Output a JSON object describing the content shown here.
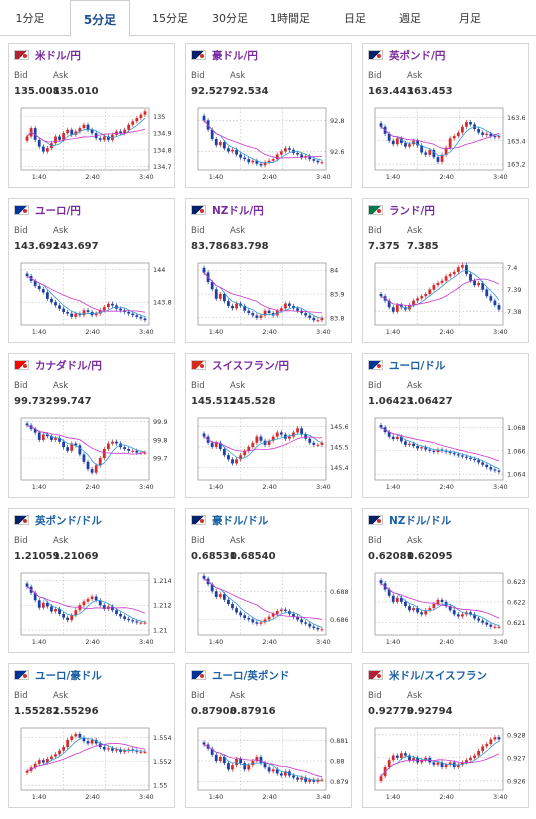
{
  "tabs": [
    {
      "label": "1分足",
      "active": false
    },
    {
      "label": "5分足",
      "active": true
    },
    {
      "label": "15分足",
      "active": false
    },
    {
      "label": "30分足",
      "active": false
    },
    {
      "label": "1時間足",
      "active": false
    },
    {
      "label": "日足",
      "active": false
    },
    {
      "label": "週足",
      "active": false
    },
    {
      "label": "月足",
      "active": false
    }
  ],
  "colors": {
    "up": "#d52b2b",
    "down": "#1c3fa8",
    "ma_short": "#2f9ad6",
    "ma_long": "#cc33cc",
    "grid": "#bbbbbb",
    "accent": "#1d4e8f"
  },
  "bid_label": "Bid",
  "ask_label": "Ask",
  "x_ticks": [
    "1:40",
    "2:40",
    "3:40"
  ],
  "pairs": [
    {
      "name": "米ドル/円",
      "flag": "us-jp-flag-icon",
      "bid": "135.008",
      "ask": "135.010",
      "title_color": "purple",
      "chart_data": {
        "type": "candlestick",
        "y_ticks": [
          "135",
          "134.9",
          "134.8",
          "134.7"
        ],
        "ylim": [
          134.68,
          135.05
        ],
        "close": [
          134.88,
          134.93,
          134.86,
          134.82,
          134.79,
          134.81,
          134.84,
          134.88,
          134.86,
          134.9,
          134.92,
          134.89,
          134.91,
          134.93,
          134.95,
          134.92,
          134.9,
          134.87,
          134.86,
          134.88,
          134.86,
          134.89,
          134.91,
          134.9,
          134.92,
          134.95,
          134.97,
          134.99,
          135.01,
          135.03
        ]
      }
    },
    {
      "name": "豪ドル/円",
      "flag": "au-jp-flag-icon",
      "bid": "92.527",
      "ask": "92.534",
      "title_color": "purple",
      "chart_data": {
        "type": "candlestick",
        "y_ticks": [
          "92.8",
          "92.6"
        ],
        "ylim": [
          92.48,
          92.88
        ],
        "close": [
          92.8,
          92.74,
          92.68,
          92.64,
          92.66,
          92.62,
          92.6,
          92.61,
          92.58,
          92.56,
          92.55,
          92.53,
          92.54,
          92.52,
          92.51,
          92.53,
          92.54,
          92.55,
          92.58,
          92.6,
          92.62,
          92.61,
          92.59,
          92.58,
          92.56,
          92.57,
          92.55,
          92.54,
          92.53,
          92.53
        ]
      }
    },
    {
      "name": "英ポンド/円",
      "flag": "gb-jp-flag-icon",
      "bid": "163.443",
      "ask": "163.453",
      "title_color": "purple",
      "chart_data": {
        "type": "candlestick",
        "y_ticks": [
          "163.6",
          "163.4",
          "163.2"
        ],
        "ylim": [
          163.15,
          163.68
        ],
        "close": [
          163.52,
          163.46,
          163.4,
          163.37,
          163.42,
          163.38,
          163.35,
          163.37,
          163.4,
          163.36,
          163.3,
          163.28,
          163.32,
          163.26,
          163.22,
          163.28,
          163.34,
          163.42,
          163.44,
          163.47,
          163.52,
          163.56,
          163.54,
          163.5,
          163.47,
          163.45,
          163.46,
          163.44,
          163.43,
          163.44
        ]
      }
    },
    {
      "name": "ユーロ/円",
      "flag": "eu-jp-flag-icon",
      "bid": "143.692",
      "ask": "143.697",
      "title_color": "purple",
      "chart_data": {
        "type": "candlestick",
        "y_ticks": [
          "144",
          "143.8"
        ],
        "ylim": [
          143.66,
          144.04
        ],
        "close": [
          143.96,
          143.93,
          143.9,
          143.88,
          143.86,
          143.82,
          143.8,
          143.78,
          143.76,
          143.74,
          143.73,
          143.71,
          143.73,
          143.72,
          143.75,
          143.74,
          143.72,
          143.73,
          143.75,
          143.77,
          143.79,
          143.78,
          143.76,
          143.75,
          143.74,
          143.73,
          143.72,
          143.71,
          143.7,
          143.69
        ]
      }
    },
    {
      "name": "NZドル/円",
      "flag": "nz-jp-flag-icon",
      "bid": "83.786",
      "ask": "83.798",
      "title_color": "purple",
      "chart_data": {
        "type": "candlestick",
        "y_ticks": [
          "84",
          "83.9",
          "83.8"
        ],
        "ylim": [
          83.77,
          84.03
        ],
        "close": [
          83.99,
          83.95,
          83.92,
          83.88,
          83.9,
          83.87,
          83.85,
          83.84,
          83.86,
          83.85,
          83.83,
          83.82,
          83.81,
          83.8,
          83.81,
          83.83,
          83.82,
          83.81,
          83.83,
          83.84,
          83.86,
          83.85,
          83.84,
          83.83,
          83.82,
          83.81,
          83.8,
          83.79,
          83.79,
          83.8
        ]
      }
    },
    {
      "name": "ランド/円",
      "flag": "za-jp-flag-icon",
      "bid": "7.375",
      "ask": "7.385",
      "title_color": "purple",
      "chart_data": {
        "type": "candlestick",
        "y_ticks": [
          "7.4",
          "7.39",
          "7.38"
        ],
        "ylim": [
          7.374,
          7.402
        ],
        "close": [
          7.387,
          7.385,
          7.382,
          7.38,
          7.383,
          7.382,
          7.381,
          7.383,
          7.385,
          7.386,
          7.387,
          7.388,
          7.39,
          7.392,
          7.393,
          7.394,
          7.396,
          7.397,
          7.398,
          7.4,
          7.401,
          7.397,
          7.394,
          7.392,
          7.393,
          7.39,
          7.387,
          7.385,
          7.383,
          7.381
        ]
      }
    },
    {
      "name": "カナダドル/円",
      "flag": "ca-jp-flag-icon",
      "bid": "99.732",
      "ask": "99.747",
      "title_color": "purple",
      "chart_data": {
        "type": "candlestick",
        "y_ticks": [
          "99.9",
          "99.8",
          "99.7"
        ],
        "ylim": [
          99.58,
          99.92
        ],
        "close": [
          99.88,
          99.86,
          99.84,
          99.8,
          99.83,
          99.82,
          99.8,
          99.81,
          99.79,
          99.76,
          99.74,
          99.78,
          99.77,
          99.72,
          99.68,
          99.64,
          99.62,
          99.66,
          99.7,
          99.75,
          99.78,
          99.79,
          99.78,
          99.76,
          99.75,
          99.74,
          99.74,
          99.73,
          99.73,
          99.73
        ]
      }
    },
    {
      "name": "スイスフラン/円",
      "flag": "ch-jp-flag-icon",
      "bid": "145.512",
      "ask": "145.528",
      "title_color": "purple",
      "chart_data": {
        "type": "candlestick",
        "y_ticks": [
          "145.6",
          "145.5",
          "145.4"
        ],
        "ylim": [
          145.34,
          145.64
        ],
        "close": [
          145.55,
          145.52,
          145.5,
          145.52,
          145.49,
          145.46,
          145.44,
          145.42,
          145.44,
          145.46,
          145.48,
          145.5,
          145.52,
          145.55,
          145.53,
          145.51,
          145.53,
          145.55,
          145.57,
          145.56,
          145.54,
          145.55,
          145.57,
          145.59,
          145.56,
          145.54,
          145.52,
          145.51,
          145.51,
          145.52
        ]
      }
    },
    {
      "name": "ユーロ/ドル",
      "flag": "eu-us-flag-icon",
      "bid": "1.06423",
      "ask": "1.06427",
      "title_color": "blue",
      "chart_data": {
        "type": "candlestick",
        "y_ticks": [
          "1.068",
          "1.066",
          "1.064"
        ],
        "ylim": [
          1.0635,
          1.0688
        ],
        "close": [
          1.068,
          1.0676,
          1.0672,
          1.067,
          1.0672,
          1.0668,
          1.0665,
          1.0666,
          1.0664,
          1.0662,
          1.0663,
          1.0661,
          1.066,
          1.0659,
          1.0661,
          1.066,
          1.0659,
          1.0658,
          1.0657,
          1.0656,
          1.0655,
          1.0654,
          1.0653,
          1.0652,
          1.065,
          1.0648,
          1.0646,
          1.0644,
          1.0643,
          1.0642
        ]
      }
    },
    {
      "name": "英ポンド/ドル",
      "flag": "gb-us-flag-icon",
      "bid": "1.21059",
      "ask": "1.21069",
      "title_color": "blue",
      "chart_data": {
        "type": "candlestick",
        "y_ticks": [
          "1.214",
          "1.212",
          "1.21"
        ],
        "ylim": [
          1.2096,
          1.2146
        ],
        "close": [
          1.2135,
          1.213,
          1.2124,
          1.2118,
          1.2122,
          1.2119,
          1.2115,
          1.2117,
          1.2113,
          1.211,
          1.2108,
          1.2112,
          1.2116,
          1.212,
          1.2123,
          1.2125,
          1.2127,
          1.2124,
          1.212,
          1.2117,
          1.2119,
          1.2116,
          1.2113,
          1.2111,
          1.2109,
          1.2108,
          1.2107,
          1.2106,
          1.2106,
          1.2106
        ]
      }
    },
    {
      "name": "豪ドル/ドル",
      "flag": "au-us-flag-icon",
      "bid": "0.68531",
      "ask": "0.68540",
      "title_color": "blue",
      "chart_data": {
        "type": "candlestick",
        "y_ticks": [
          "0.688",
          "0.686"
        ],
        "ylim": [
          0.6849,
          0.6893
        ],
        "close": [
          0.6889,
          0.6885,
          0.688,
          0.6876,
          0.6878,
          0.6874,
          0.6871,
          0.6868,
          0.6865,
          0.6863,
          0.6861,
          0.686,
          0.6858,
          0.6857,
          0.6858,
          0.686,
          0.6862,
          0.6864,
          0.6866,
          0.6867,
          0.6866,
          0.6864,
          0.6862,
          0.686,
          0.6858,
          0.6857,
          0.6855,
          0.6854,
          0.6853,
          0.6853
        ]
      }
    },
    {
      "name": "NZドル/ドル",
      "flag": "nz-us-flag-icon",
      "bid": "0.62081",
      "ask": "0.62095",
      "title_color": "blue",
      "chart_data": {
        "type": "candlestick",
        "y_ticks": [
          "0.623",
          "0.622",
          "0.621"
        ],
        "ylim": [
          0.6204,
          0.6234
        ],
        "close": [
          0.6229,
          0.6226,
          0.6223,
          0.622,
          0.6222,
          0.622,
          0.6218,
          0.6216,
          0.6217,
          0.6215,
          0.6214,
          0.6216,
          0.6217,
          0.6219,
          0.6221,
          0.622,
          0.6218,
          0.6216,
          0.6214,
          0.6213,
          0.6214,
          0.6215,
          0.6214,
          0.6212,
          0.6211,
          0.621,
          0.6209,
          0.6208,
          0.6208,
          0.6208
        ]
      }
    },
    {
      "name": "ユーロ/豪ドル",
      "flag": "eu-au-flag-icon",
      "bid": "1.55282",
      "ask": "1.55296",
      "title_color": "blue",
      "chart_data": {
        "type": "candlestick",
        "y_ticks": [
          "1.554",
          "1.552",
          "1.55"
        ],
        "ylim": [
          1.5496,
          1.5548
        ],
        "close": [
          1.5512,
          1.5515,
          1.5518,
          1.5521,
          1.5519,
          1.5522,
          1.5524,
          1.5526,
          1.5529,
          1.5532,
          1.5538,
          1.5541,
          1.5543,
          1.554,
          1.5537,
          1.5535,
          1.5538,
          1.5535,
          1.5532,
          1.553,
          1.5531,
          1.5529,
          1.553,
          1.5528,
          1.5529,
          1.553,
          1.5529,
          1.5528,
          1.5528,
          1.5528
        ]
      }
    },
    {
      "name": "ユーロ/英ポンド",
      "flag": "eu-gb-flag-icon",
      "bid": "0.87908",
      "ask": "0.87916",
      "title_color": "blue",
      "chart_data": {
        "type": "candlestick",
        "y_ticks": [
          "0.881",
          "0.88",
          "0.879"
        ],
        "ylim": [
          0.8786,
          0.8816
        ],
        "close": [
          0.8808,
          0.8806,
          0.8803,
          0.88,
          0.8802,
          0.8799,
          0.8796,
          0.8798,
          0.8801,
          0.8799,
          0.8796,
          0.8798,
          0.88,
          0.8802,
          0.8799,
          0.8797,
          0.8795,
          0.8796,
          0.8794,
          0.8793,
          0.8795,
          0.8793,
          0.8792,
          0.8791,
          0.8792,
          0.879,
          0.8791,
          0.879,
          0.8791,
          0.8791
        ]
      }
    },
    {
      "name": "米ドル/スイスフラン",
      "flag": "us-ch-flag-icon",
      "bid": "0.92779",
      "ask": "0.92794",
      "title_color": "blue",
      "chart_data": {
        "type": "candlestick",
        "y_ticks": [
          "0.928",
          "0.927",
          "0.926"
        ],
        "ylim": [
          0.9256,
          0.9283
        ],
        "close": [
          0.9262,
          0.9266,
          0.9269,
          0.9271,
          0.927,
          0.9272,
          0.9271,
          0.9269,
          0.927,
          0.9268,
          0.9269,
          0.927,
          0.9268,
          0.9267,
          0.9268,
          0.9266,
          0.9267,
          0.9268,
          0.9266,
          0.9267,
          0.9268,
          0.9269,
          0.927,
          0.9271,
          0.9273,
          0.9275,
          0.9276,
          0.9278,
          0.9279,
          0.9278
        ]
      }
    }
  ]
}
